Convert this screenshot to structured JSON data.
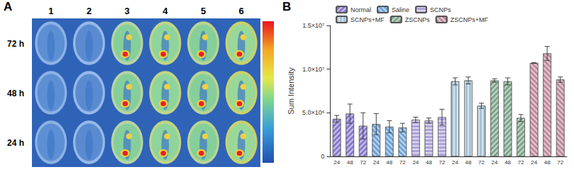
{
  "panel_a": {
    "label": "A",
    "columns": [
      "1",
      "2",
      "3",
      "4",
      "5",
      "6"
    ],
    "rows": [
      "72 h",
      "48 h",
      "24 h"
    ]
  },
  "panel_b": {
    "label": "B"
  },
  "chart_data": {
    "type": "bar",
    "y_label": "Sum Intensity",
    "categories": [
      "24",
      "48",
      "72",
      "24",
      "48",
      "72",
      "24",
      "48",
      "72",
      "24",
      "48",
      "72",
      "24",
      "48",
      "72",
      "24",
      "48",
      "72"
    ],
    "ylim": [
      0,
      15000000
    ],
    "yticks": [
      0,
      {
        "value": 5000000,
        "label": "5.0×10⁶"
      },
      {
        "value": 10000000,
        "label": "1.0×10⁷"
      },
      {
        "value": 15000000,
        "label": "1.5×10⁷"
      }
    ],
    "grid": false,
    "legend": "top",
    "series": [
      {
        "name": "Normal",
        "color": "#8878d0",
        "values": [
          4300000,
          4900000,
          3500000,
          null,
          null,
          null,
          null,
          null,
          null,
          null,
          null,
          null,
          null,
          null,
          null,
          null,
          null,
          null
        ],
        "errors": [
          400000,
          1100000,
          1500000,
          null,
          null,
          null,
          null,
          null,
          null,
          null,
          null,
          null,
          null,
          null,
          null,
          null,
          null,
          null
        ]
      },
      {
        "name": "Saline",
        "color": "#6fa3d8",
        "values": [
          null,
          null,
          null,
          3700000,
          3400000,
          3300000,
          null,
          null,
          null,
          null,
          null,
          null,
          null,
          null,
          null,
          null,
          null,
          null
        ],
        "errors": [
          null,
          null,
          null,
          1200000,
          700000,
          500000,
          null,
          null,
          null,
          null,
          null,
          null,
          null,
          null,
          null,
          null,
          null,
          null
        ]
      },
      {
        "name": "SCNPs",
        "color": "#b0a4d8",
        "values": [
          null,
          null,
          null,
          null,
          null,
          null,
          4200000,
          4100000,
          4500000,
          null,
          null,
          null,
          null,
          null,
          null,
          null,
          null,
          null
        ],
        "errors": [
          null,
          null,
          null,
          null,
          null,
          null,
          300000,
          300000,
          900000,
          null,
          null,
          null,
          null,
          null,
          null,
          null,
          null,
          null
        ]
      },
      {
        "name": "SCNPs+MF",
        "color": "#a6c3d6",
        "values": [
          null,
          null,
          null,
          null,
          null,
          null,
          null,
          null,
          null,
          8600000,
          8700000,
          5800000,
          null,
          null,
          null,
          null,
          null,
          null
        ],
        "errors": [
          null,
          null,
          null,
          null,
          null,
          null,
          null,
          null,
          null,
          400000,
          400000,
          300000,
          null,
          null,
          null,
          null,
          null,
          null
        ]
      },
      {
        "name": "ZSCNPs",
        "color": "#7ea58a",
        "values": [
          null,
          null,
          null,
          null,
          null,
          null,
          null,
          null,
          null,
          null,
          null,
          null,
          8700000,
          8600000,
          4400000,
          null,
          null,
          null
        ],
        "errors": [
          null,
          null,
          null,
          null,
          null,
          null,
          null,
          null,
          null,
          null,
          null,
          null,
          200000,
          400000,
          400000,
          null,
          null,
          null
        ]
      },
      {
        "name": "ZSCNPs+MF",
        "color": "#c08a9c",
        "values": [
          null,
          null,
          null,
          null,
          null,
          null,
          null,
          null,
          null,
          null,
          null,
          null,
          null,
          null,
          null,
          10700000,
          11800000,
          8800000
        ],
        "errors": [
          null,
          null,
          null,
          null,
          null,
          null,
          null,
          null,
          null,
          null,
          null,
          null,
          null,
          null,
          null,
          50000,
          800000,
          300000
        ]
      }
    ]
  }
}
